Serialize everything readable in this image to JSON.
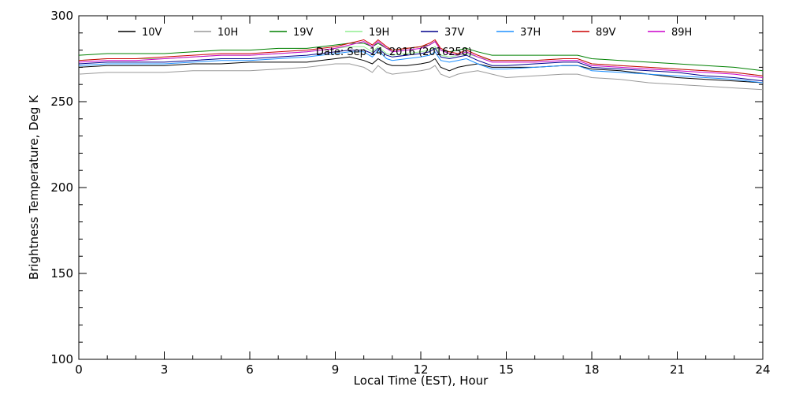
{
  "chart_data": {
    "type": "line",
    "title": "",
    "annotation": "Date: Sep 14, 2016 (2016258)",
    "xlabel": "Local Time (EST), Hour",
    "ylabel": "Brightness Temperature, Deg K",
    "xlim": [
      0,
      24
    ],
    "ylim": [
      100,
      300
    ],
    "xticks": [
      0,
      3,
      6,
      9,
      12,
      15,
      18,
      21,
      24
    ],
    "yticks": [
      100,
      150,
      200,
      250,
      300
    ],
    "grid": false,
    "legend_position": "top",
    "x": [
      0,
      1,
      2,
      3,
      4,
      5,
      6,
      7,
      8,
      9,
      9.5,
      10,
      10.3,
      10.5,
      10.8,
      11,
      11.5,
      12,
      12.3,
      12.5,
      12.7,
      13,
      13.3,
      13.6,
      14,
      14.5,
      15,
      16,
      17,
      17.5,
      18,
      19,
      20,
      21,
      22,
      23,
      24
    ],
    "series": [
      {
        "name": "10V",
        "color": "#000000",
        "values": [
          270,
          271,
          271,
          271,
          272,
          272,
          273,
          273,
          273,
          275,
          276,
          274,
          272,
          275,
          272,
          271,
          271,
          272,
          273,
          275,
          270,
          268,
          270,
          271,
          272,
          270,
          270,
          270,
          271,
          271,
          269,
          268,
          266,
          264,
          263,
          262,
          261
        ]
      },
      {
        "name": "10H",
        "color": "#999999",
        "values": [
          266,
          267,
          267,
          267,
          268,
          268,
          268,
          269,
          270,
          272,
          272,
          270,
          267,
          271,
          267,
          266,
          267,
          268,
          269,
          271,
          266,
          264,
          266,
          267,
          268,
          266,
          264,
          265,
          266,
          266,
          264,
          263,
          261,
          260,
          259,
          258,
          257
        ]
      },
      {
        "name": "19V",
        "color": "#008000",
        "values": [
          277,
          278,
          278,
          278,
          279,
          280,
          280,
          281,
          281,
          283,
          284,
          284,
          282,
          284,
          281,
          280,
          281,
          282,
          283,
          285,
          280,
          279,
          280,
          281,
          279,
          277,
          277,
          277,
          277,
          277,
          275,
          274,
          273,
          272,
          271,
          270,
          268
        ]
      },
      {
        "name": "19H",
        "color": "#90ee90",
        "values": [
          274,
          275,
          275,
          275,
          276,
          277,
          277,
          278,
          279,
          281,
          282,
          282,
          279,
          282,
          278,
          277,
          278,
          279,
          280,
          282,
          277,
          276,
          277,
          278,
          276,
          274,
          274,
          274,
          275,
          275,
          272,
          271,
          270,
          269,
          268,
          267,
          265
        ]
      },
      {
        "name": "37V",
        "color": "#00008b",
        "values": [
          272,
          273,
          273,
          273,
          274,
          275,
          275,
          276,
          277,
          279,
          280,
          280,
          278,
          281,
          277,
          276,
          277,
          278,
          279,
          281,
          276,
          275,
          276,
          277,
          274,
          271,
          271,
          272,
          273,
          273,
          270,
          269,
          268,
          267,
          265,
          264,
          262
        ]
      },
      {
        "name": "37H",
        "color": "#1e90ff",
        "values": [
          271,
          272,
          272,
          272,
          273,
          274,
          274,
          275,
          276,
          278,
          279,
          279,
          276,
          280,
          275,
          274,
          275,
          276,
          277,
          279,
          274,
          273,
          274,
          275,
          272,
          269,
          269,
          270,
          271,
          271,
          268,
          267,
          266,
          265,
          264,
          263,
          261
        ]
      },
      {
        "name": "89V",
        "color": "#cc0000",
        "values": [
          274,
          275,
          275,
          276,
          277,
          278,
          278,
          279,
          280,
          282,
          284,
          286,
          283,
          286,
          282,
          280,
          281,
          282,
          284,
          286,
          281,
          279,
          278,
          280,
          277,
          274,
          274,
          274,
          275,
          275,
          272,
          271,
          270,
          269,
          268,
          267,
          265
        ]
      },
      {
        "name": "89H",
        "color": "#cc00cc",
        "values": [
          273,
          274,
          274,
          275,
          276,
          277,
          277,
          278,
          279,
          281,
          283,
          285,
          282,
          285,
          281,
          279,
          280,
          281,
          283,
          285,
          280,
          278,
          277,
          279,
          276,
          273,
          273,
          273,
          274,
          274,
          271,
          270,
          269,
          268,
          267,
          266,
          264
        ]
      }
    ]
  }
}
